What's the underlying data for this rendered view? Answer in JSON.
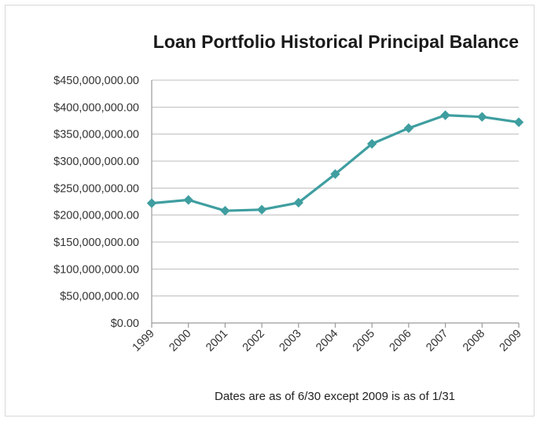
{
  "chart_data": {
    "type": "line",
    "title": "Loan Portfolio Historical Principal Balance",
    "note": "Dates are as of 6/30 except 2009 is as of 1/31",
    "categories": [
      "1999",
      "2000",
      "2001",
      "2002",
      "2003",
      "2004",
      "2005",
      "2006",
      "2007",
      "2008",
      "2009"
    ],
    "series": [
      {
        "values": [
          222000000,
          228000000,
          208000000,
          210000000,
          223000000,
          276000000,
          332000000,
          361000000,
          385000000,
          382000000,
          372000000
        ],
        "color": "#3f9ea0",
        "marker": "diamond"
      }
    ],
    "ylim": [
      0,
      450000000
    ],
    "yticks": [
      0,
      50000000,
      100000000,
      150000000,
      200000000,
      250000000,
      300000000,
      350000000,
      400000000,
      450000000
    ],
    "ytick_labels": [
      "$0.00",
      "$50,000,000.00",
      "$100,000,000.00",
      "$150,000,000.00",
      "$200,000,000.00",
      "$250,000,000.00",
      "$300,000,000.00",
      "$350,000,000.00",
      "$400,000,000.00",
      "$450,000,000.00"
    ],
    "grid": true,
    "legend": "none"
  }
}
